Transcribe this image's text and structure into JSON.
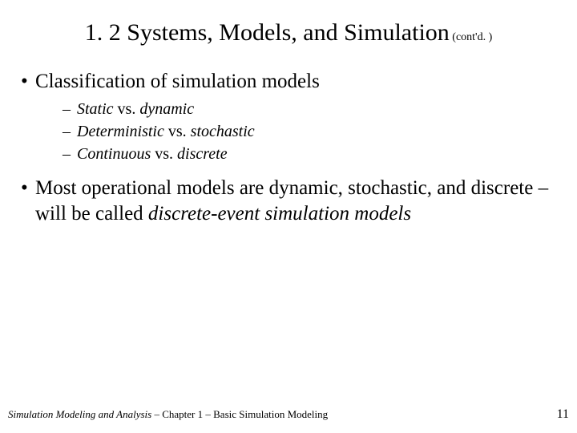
{
  "colors": {
    "background": "#ffffff",
    "text": "#000000"
  },
  "typography": {
    "family": "Times New Roman",
    "title_fontsize": 30,
    "title_suffix_fontsize": 14,
    "bullet_l1_fontsize": 25,
    "bullet_l2_fontsize": 20,
    "footer_left_fontsize": 13,
    "footer_right_fontsize": 16
  },
  "title": {
    "main": "1. 2  Systems, Models, and Simulation",
    "suffix": " (cont'd. )"
  },
  "bullets": [
    {
      "text": "Classification of simulation models",
      "subitems": [
        {
          "prefix": "Static",
          "middle": " vs. ",
          "suffix": "dynamic"
        },
        {
          "prefix": "Deterministic",
          "middle": " vs. ",
          "suffix": "stochastic"
        },
        {
          "prefix": "Continuous",
          "middle": " vs. ",
          "suffix": "discrete"
        }
      ]
    },
    {
      "text_pre": "Most operational models are dynamic, stochastic, and discrete – will be called ",
      "text_ital": "discrete-event simulation models"
    }
  ],
  "footer": {
    "left_ital": "Simulation Modeling and Analysis –",
    "left_rest": " Chapter 1 –  Basic Simulation Modeling",
    "page": "11"
  }
}
